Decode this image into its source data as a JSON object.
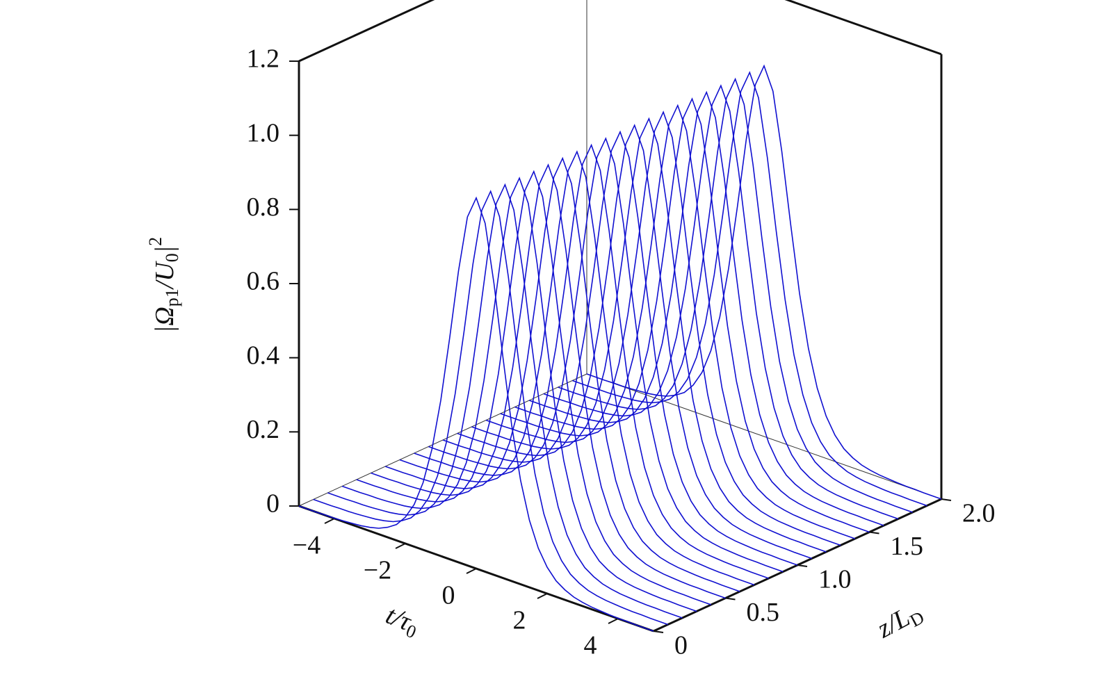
{
  "chart_data": {
    "type": "waterfall3d",
    "ylabel": [
      {
        "text": "|Ω"
      },
      {
        "sub": "p1"
      },
      {
        "text": "/U"
      },
      {
        "sub": "0"
      },
      {
        "text": "|"
      },
      {
        "sup": "2"
      }
    ],
    "xlabel": [
      {
        "text": "t/τ"
      },
      {
        "sub": "0"
      }
    ],
    "zlabel": [
      {
        "text": "z/L"
      },
      {
        "sub": "D"
      }
    ],
    "color": "#1010d0",
    "xlim": [
      -5,
      5
    ],
    "zlim": [
      0,
      2
    ],
    "ylim": [
      0,
      1.2
    ],
    "yticks": [
      0,
      0.2,
      0.4,
      0.6,
      0.8,
      {
        "value": 1,
        "label": "1.0"
      },
      1.2
    ],
    "xticks": [
      {
        "value": -4,
        "label": "−4"
      },
      {
        "value": -2,
        "label": "−2"
      },
      0,
      2,
      4
    ],
    "zticks": [
      0,
      0.5,
      {
        "value": 1,
        "label": "1.0"
      },
      1.5,
      {
        "value": 2,
        "label": "2.0"
      }
    ],
    "x": [
      -5,
      -4.75,
      -4.5,
      -4.25,
      -4,
      -3.75,
      -3.5,
      -3.25,
      -3,
      -2.75,
      -2.5,
      -2.25,
      -2,
      -1.75,
      -1.5,
      -1.25,
      -1,
      -0.75,
      -0.5,
      -0.25,
      0,
      0.25,
      0.5,
      0.75,
      1,
      1.25,
      1.5,
      1.75,
      2,
      2.25,
      2.5,
      2.75,
      3,
      3.25,
      3.5,
      3.75,
      4,
      4.25,
      4.5,
      4.75,
      5
    ],
    "z": [
      0,
      0.1,
      0.2,
      0.3,
      0.4,
      0.5,
      0.6,
      0.7,
      0.8,
      0.9,
      1,
      1.1,
      1.2,
      1.3,
      1.4,
      1.5,
      1.6,
      1.7,
      1.8,
      1.9,
      2
    ],
    "series": [
      {
        "values": [
          0,
          0,
          0,
          0.001,
          0.001,
          0.002,
          0.004,
          0.006,
          0.01,
          0.016,
          0.027,
          0.043,
          0.071,
          0.114,
          0.181,
          0.28,
          0.42,
          0.597,
          0.786,
          0.94,
          1,
          0.94,
          0.786,
          0.597,
          0.42,
          0.28,
          0.181,
          0.114,
          0.071,
          0.043,
          0.027,
          0.016,
          0.01,
          0.006,
          0.004,
          0.002,
          0.001,
          0.001,
          0,
          0,
          0
        ]
      },
      {
        "values": [
          0,
          0,
          0,
          0.001,
          0.001,
          0.002,
          0.004,
          0.006,
          0.01,
          0.016,
          0.027,
          0.043,
          0.071,
          0.114,
          0.181,
          0.28,
          0.42,
          0.597,
          0.786,
          0.94,
          1,
          0.94,
          0.786,
          0.597,
          0.42,
          0.28,
          0.181,
          0.114,
          0.071,
          0.043,
          0.027,
          0.016,
          0.01,
          0.006,
          0.004,
          0.002,
          0.001,
          0.001,
          0,
          0,
          0
        ]
      },
      {
        "values": [
          0,
          0,
          0,
          0.001,
          0.001,
          0.002,
          0.004,
          0.006,
          0.01,
          0.016,
          0.027,
          0.043,
          0.071,
          0.114,
          0.181,
          0.28,
          0.42,
          0.597,
          0.786,
          0.94,
          1,
          0.94,
          0.786,
          0.597,
          0.42,
          0.28,
          0.181,
          0.114,
          0.071,
          0.043,
          0.027,
          0.016,
          0.01,
          0.006,
          0.004,
          0.002,
          0.001,
          0.001,
          0,
          0,
          0
        ]
      },
      {
        "values": [
          0,
          0,
          0,
          0.001,
          0.001,
          0.002,
          0.004,
          0.006,
          0.01,
          0.016,
          0.027,
          0.043,
          0.071,
          0.114,
          0.181,
          0.28,
          0.42,
          0.597,
          0.786,
          0.94,
          1,
          0.94,
          0.786,
          0.597,
          0.42,
          0.28,
          0.181,
          0.114,
          0.071,
          0.043,
          0.027,
          0.016,
          0.01,
          0.006,
          0.004,
          0.002,
          0.001,
          0.001,
          0,
          0,
          0
        ]
      },
      {
        "values": [
          0,
          0,
          0,
          0.001,
          0.001,
          0.002,
          0.004,
          0.006,
          0.01,
          0.016,
          0.027,
          0.043,
          0.071,
          0.114,
          0.181,
          0.28,
          0.42,
          0.597,
          0.786,
          0.94,
          1,
          0.94,
          0.786,
          0.597,
          0.42,
          0.28,
          0.181,
          0.114,
          0.071,
          0.043,
          0.027,
          0.016,
          0.01,
          0.006,
          0.004,
          0.002,
          0.001,
          0.001,
          0,
          0,
          0
        ]
      },
      {
        "values": [
          0,
          0,
          0,
          0.001,
          0.001,
          0.002,
          0.004,
          0.006,
          0.01,
          0.016,
          0.027,
          0.043,
          0.071,
          0.114,
          0.181,
          0.28,
          0.42,
          0.597,
          0.786,
          0.94,
          1,
          0.94,
          0.786,
          0.597,
          0.42,
          0.28,
          0.181,
          0.114,
          0.071,
          0.043,
          0.027,
          0.016,
          0.01,
          0.006,
          0.004,
          0.002,
          0.001,
          0.001,
          0,
          0,
          0
        ]
      },
      {
        "values": [
          0,
          0,
          0,
          0.001,
          0.001,
          0.002,
          0.004,
          0.006,
          0.01,
          0.016,
          0.027,
          0.043,
          0.071,
          0.114,
          0.181,
          0.28,
          0.42,
          0.597,
          0.786,
          0.94,
          1,
          0.94,
          0.786,
          0.597,
          0.42,
          0.28,
          0.181,
          0.114,
          0.071,
          0.043,
          0.027,
          0.016,
          0.01,
          0.006,
          0.004,
          0.002,
          0.001,
          0.001,
          0,
          0,
          0
        ]
      },
      {
        "values": [
          0,
          0,
          0,
          0.001,
          0.001,
          0.002,
          0.004,
          0.006,
          0.01,
          0.016,
          0.027,
          0.043,
          0.071,
          0.114,
          0.181,
          0.28,
          0.42,
          0.597,
          0.786,
          0.94,
          1,
          0.94,
          0.786,
          0.597,
          0.42,
          0.28,
          0.181,
          0.114,
          0.071,
          0.043,
          0.027,
          0.016,
          0.01,
          0.006,
          0.004,
          0.002,
          0.001,
          0.001,
          0,
          0,
          0
        ]
      },
      {
        "values": [
          0,
          0,
          0,
          0.001,
          0.001,
          0.002,
          0.004,
          0.006,
          0.01,
          0.016,
          0.027,
          0.043,
          0.071,
          0.114,
          0.181,
          0.28,
          0.42,
          0.597,
          0.786,
          0.94,
          1,
          0.94,
          0.786,
          0.597,
          0.42,
          0.28,
          0.181,
          0.114,
          0.071,
          0.043,
          0.027,
          0.016,
          0.01,
          0.006,
          0.004,
          0.002,
          0.001,
          0.001,
          0,
          0,
          0
        ]
      },
      {
        "values": [
          0,
          0,
          0,
          0.001,
          0.001,
          0.002,
          0.004,
          0.006,
          0.01,
          0.016,
          0.027,
          0.043,
          0.071,
          0.114,
          0.181,
          0.28,
          0.42,
          0.597,
          0.786,
          0.94,
          1,
          0.94,
          0.786,
          0.597,
          0.42,
          0.28,
          0.181,
          0.114,
          0.071,
          0.043,
          0.027,
          0.016,
          0.01,
          0.006,
          0.004,
          0.002,
          0.001,
          0.001,
          0,
          0,
          0
        ]
      },
      {
        "values": [
          0,
          0,
          0,
          0.001,
          0.001,
          0.002,
          0.004,
          0.006,
          0.01,
          0.016,
          0.027,
          0.043,
          0.071,
          0.114,
          0.181,
          0.28,
          0.42,
          0.597,
          0.786,
          0.94,
          1,
          0.94,
          0.786,
          0.597,
          0.42,
          0.28,
          0.181,
          0.114,
          0.071,
          0.043,
          0.027,
          0.016,
          0.01,
          0.006,
          0.004,
          0.002,
          0.001,
          0.001,
          0,
          0,
          0
        ]
      },
      {
        "values": [
          0,
          0,
          0,
          0.001,
          0.001,
          0.002,
          0.004,
          0.006,
          0.01,
          0.016,
          0.027,
          0.043,
          0.071,
          0.114,
          0.181,
          0.28,
          0.42,
          0.597,
          0.786,
          0.94,
          1,
          0.94,
          0.786,
          0.597,
          0.42,
          0.28,
          0.181,
          0.114,
          0.071,
          0.043,
          0.027,
          0.016,
          0.01,
          0.006,
          0.004,
          0.002,
          0.001,
          0.001,
          0,
          0,
          0
        ]
      },
      {
        "values": [
          0,
          0,
          0,
          0.001,
          0.001,
          0.002,
          0.004,
          0.006,
          0.01,
          0.016,
          0.027,
          0.043,
          0.071,
          0.114,
          0.181,
          0.28,
          0.42,
          0.597,
          0.786,
          0.94,
          1,
          0.94,
          0.786,
          0.597,
          0.42,
          0.28,
          0.181,
          0.114,
          0.071,
          0.043,
          0.027,
          0.016,
          0.01,
          0.006,
          0.004,
          0.002,
          0.001,
          0.001,
          0,
          0,
          0
        ]
      },
      {
        "values": [
          0,
          0,
          0,
          0.001,
          0.001,
          0.002,
          0.004,
          0.006,
          0.01,
          0.016,
          0.027,
          0.043,
          0.071,
          0.114,
          0.181,
          0.28,
          0.42,
          0.597,
          0.786,
          0.94,
          1,
          0.94,
          0.786,
          0.597,
          0.42,
          0.28,
          0.181,
          0.114,
          0.071,
          0.043,
          0.027,
          0.016,
          0.01,
          0.006,
          0.004,
          0.002,
          0.001,
          0.001,
          0,
          0,
          0
        ]
      },
      {
        "values": [
          0,
          0,
          0,
          0.001,
          0.001,
          0.002,
          0.004,
          0.006,
          0.01,
          0.016,
          0.027,
          0.043,
          0.071,
          0.114,
          0.181,
          0.28,
          0.42,
          0.597,
          0.786,
          0.94,
          1,
          0.94,
          0.786,
          0.597,
          0.42,
          0.28,
          0.181,
          0.114,
          0.071,
          0.043,
          0.027,
          0.016,
          0.01,
          0.006,
          0.004,
          0.002,
          0.001,
          0.001,
          0,
          0,
          0
        ]
      },
      {
        "values": [
          0,
          0,
          0,
          0.001,
          0.001,
          0.002,
          0.004,
          0.006,
          0.01,
          0.016,
          0.027,
          0.043,
          0.071,
          0.114,
          0.181,
          0.28,
          0.42,
          0.597,
          0.786,
          0.94,
          1,
          0.94,
          0.786,
          0.597,
          0.42,
          0.28,
          0.181,
          0.114,
          0.071,
          0.043,
          0.027,
          0.016,
          0.01,
          0.006,
          0.004,
          0.002,
          0.001,
          0.001,
          0,
          0,
          0
        ]
      },
      {
        "values": [
          0,
          0,
          0,
          0.001,
          0.001,
          0.002,
          0.004,
          0.006,
          0.01,
          0.016,
          0.027,
          0.043,
          0.071,
          0.114,
          0.181,
          0.28,
          0.42,
          0.597,
          0.786,
          0.94,
          1,
          0.94,
          0.786,
          0.597,
          0.42,
          0.28,
          0.181,
          0.114,
          0.071,
          0.043,
          0.027,
          0.016,
          0.01,
          0.006,
          0.004,
          0.002,
          0.001,
          0.001,
          0,
          0,
          0
        ]
      },
      {
        "values": [
          0,
          0,
          0,
          0.001,
          0.001,
          0.002,
          0.004,
          0.006,
          0.01,
          0.016,
          0.027,
          0.043,
          0.071,
          0.114,
          0.181,
          0.28,
          0.42,
          0.597,
          0.786,
          0.94,
          1,
          0.94,
          0.786,
          0.597,
          0.42,
          0.28,
          0.181,
          0.114,
          0.071,
          0.043,
          0.027,
          0.016,
          0.01,
          0.006,
          0.004,
          0.002,
          0.001,
          0.001,
          0,
          0,
          0
        ]
      },
      {
        "values": [
          0,
          0,
          0,
          0.001,
          0.001,
          0.002,
          0.004,
          0.006,
          0.01,
          0.016,
          0.027,
          0.043,
          0.071,
          0.114,
          0.181,
          0.28,
          0.42,
          0.597,
          0.786,
          0.94,
          1,
          0.94,
          0.786,
          0.597,
          0.42,
          0.28,
          0.181,
          0.114,
          0.071,
          0.043,
          0.027,
          0.016,
          0.01,
          0.006,
          0.004,
          0.002,
          0.001,
          0.001,
          0,
          0,
          0
        ]
      },
      {
        "values": [
          0,
          0,
          0,
          0.001,
          0.001,
          0.002,
          0.004,
          0.006,
          0.01,
          0.016,
          0.027,
          0.043,
          0.071,
          0.114,
          0.181,
          0.28,
          0.42,
          0.597,
          0.786,
          0.94,
          1,
          0.94,
          0.786,
          0.597,
          0.42,
          0.28,
          0.181,
          0.114,
          0.071,
          0.043,
          0.027,
          0.016,
          0.01,
          0.006,
          0.004,
          0.002,
          0.001,
          0.001,
          0,
          0,
          0
        ]
      },
      {
        "values": [
          0,
          0,
          0,
          0.001,
          0.001,
          0.002,
          0.004,
          0.006,
          0.01,
          0.016,
          0.027,
          0.043,
          0.071,
          0.114,
          0.181,
          0.28,
          0.42,
          0.597,
          0.786,
          0.94,
          1,
          0.94,
          0.786,
          0.597,
          0.42,
          0.28,
          0.181,
          0.114,
          0.071,
          0.043,
          0.027,
          0.016,
          0.01,
          0.006,
          0.004,
          0.002,
          0.001,
          0.001,
          0,
          0,
          0
        ]
      }
    ]
  }
}
